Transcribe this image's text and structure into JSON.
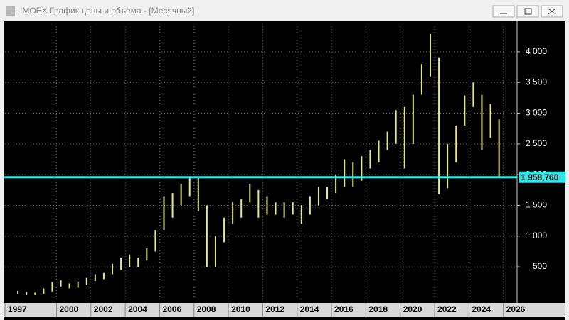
{
  "chart_data": {
    "type": "range-bar",
    "title": "IMOEX График цены и объёма - [Месячный]",
    "color": "#e6e68c",
    "x": [
      1997.75,
      1998.25,
      1998.75,
      1999.25,
      1999.75,
      2000.25,
      2000.75,
      2001.25,
      2001.75,
      2002.25,
      2002.75,
      2003.25,
      2003.75,
      2004.25,
      2004.75,
      2005.25,
      2005.75,
      2006.25,
      2006.75,
      2007.25,
      2007.75,
      2008.25,
      2008.75,
      2009.25,
      2009.75,
      2010.25,
      2010.75,
      2011.25,
      2011.75,
      2012.25,
      2012.75,
      2013.25,
      2013.75,
      2014.25,
      2014.75,
      2015.25,
      2015.75,
      2016.25,
      2016.75,
      2017.25,
      2017.75,
      2018.25,
      2018.75,
      2019.25,
      2019.75,
      2020.25,
      2020.75,
      2021.25,
      2021.75,
      2022.25,
      2022.75,
      2023.25,
      2023.75,
      2024.25,
      2024.75,
      2025.25,
      2025.75
    ],
    "high": [
      110,
      90,
      80,
      150,
      250,
      280,
      230,
      260,
      320,
      380,
      400,
      550,
      650,
      700,
      650,
      800,
      1100,
      1650,
      1700,
      1850,
      1960,
      1950,
      1500,
      1000,
      1300,
      1550,
      1600,
      1850,
      1750,
      1650,
      1550,
      1550,
      1550,
      1500,
      1650,
      1800,
      1800,
      2000,
      2250,
      2200,
      2300,
      2400,
      2550,
      2700,
      3050,
      3100,
      3300,
      3800,
      4290,
      3900,
      2500,
      2800,
      3290,
      3500,
      3300,
      3150,
      2900
    ],
    "low": [
      60,
      40,
      40,
      60,
      100,
      180,
      150,
      160,
      200,
      270,
      300,
      380,
      450,
      500,
      500,
      600,
      750,
      1100,
      1300,
      1500,
      1650,
      1400,
      500,
      500,
      900,
      1200,
      1300,
      1550,
      1300,
      1350,
      1350,
      1300,
      1350,
      1200,
      1350,
      1500,
      1600,
      1700,
      1800,
      1800,
      1900,
      2100,
      2200,
      2400,
      2500,
      2100,
      2500,
      3300,
      3600,
      1680,
      1780,
      2200,
      2800,
      3100,
      2400,
      2600,
      1958
    ],
    "xlim": [
      1997,
      2026.8
    ],
    "xticks": [
      1997,
      2000,
      2002,
      2004,
      2006,
      2008,
      2010,
      2012,
      2014,
      2016,
      2018,
      2020,
      2022,
      2024,
      2026
    ],
    "ylim": [
      -65,
      4415
    ],
    "yticks": [
      500,
      {
        "value": 1000,
        "label": "1 000"
      },
      {
        "value": 1500,
        "label": "1 500"
      },
      {
        "value": 2000,
        "label": "2 000"
      },
      {
        "value": 2500,
        "label": "2 500"
      },
      {
        "value": 3000,
        "label": "3 000"
      },
      {
        "value": 3500,
        "label": "3 500"
      },
      {
        "value": 4000,
        "label": "4 000"
      }
    ],
    "grid": true,
    "price_line": {
      "value": 1958.76,
      "label": "1 958,760",
      "color": "#2ee6e6"
    }
  }
}
